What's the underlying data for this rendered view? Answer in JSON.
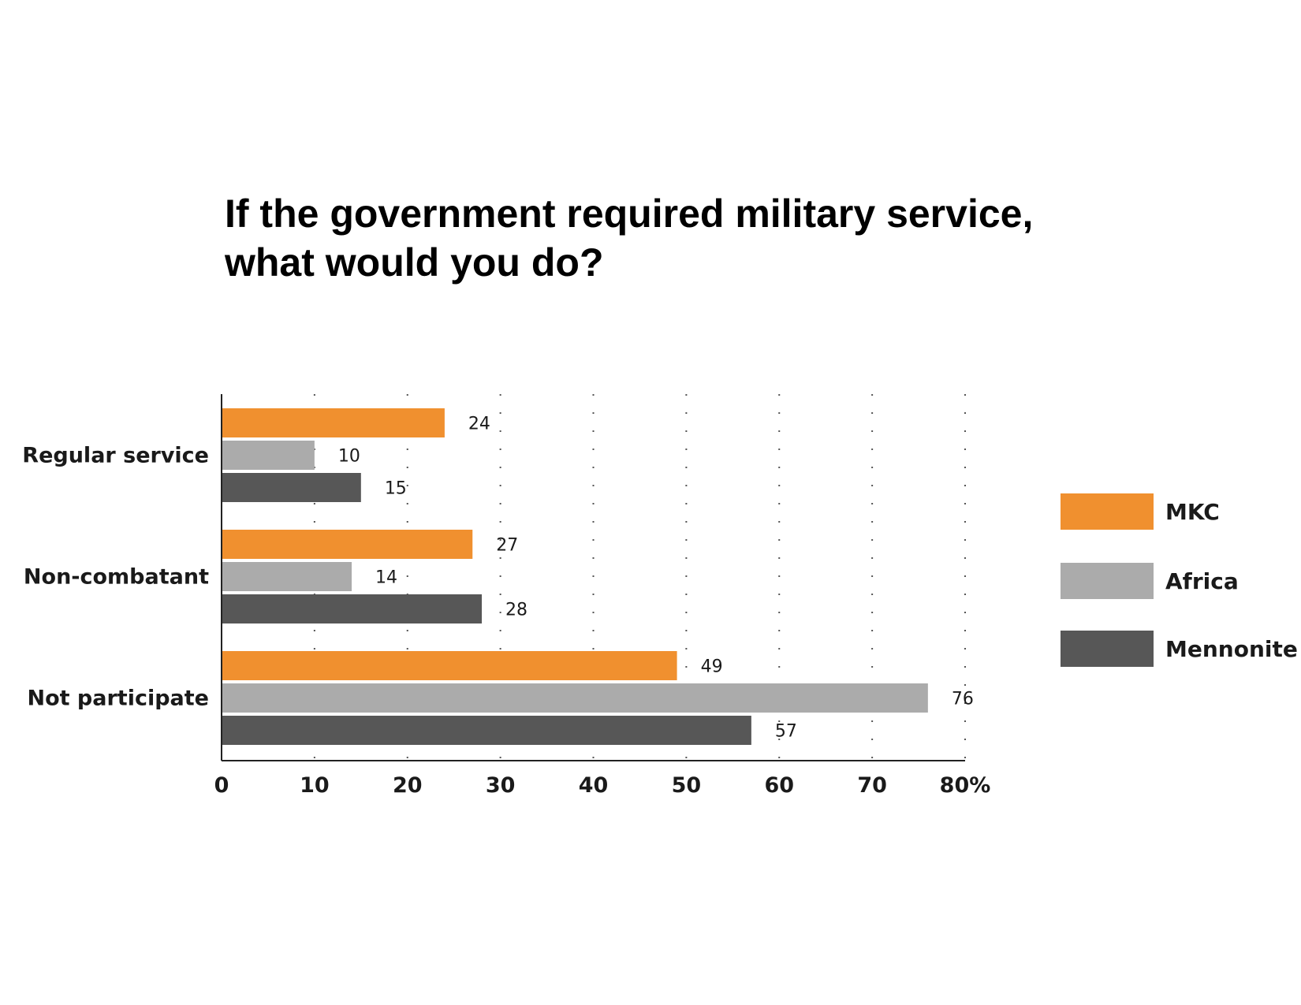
{
  "chart_data": {
    "type": "bar",
    "orientation": "horizontal",
    "title_lines": [
      "If the government required military service,",
      "what would you do?"
    ],
    "categories": [
      "Regular service",
      "Non-combatant",
      "Not participate"
    ],
    "series": [
      {
        "name": "MKC",
        "color": "#F0902F",
        "values": [
          24,
          27,
          49
        ]
      },
      {
        "name": "Africa",
        "color": "#ABABAB",
        "values": [
          10,
          14,
          76
        ]
      },
      {
        "name": "Mennonite",
        "color": "#575757",
        "values": [
          15,
          28,
          57
        ]
      }
    ],
    "x_ticks": [
      "0",
      "10",
      "20",
      "30",
      "40",
      "50",
      "60",
      "70",
      "80%"
    ],
    "xlim": [
      0,
      80
    ],
    "grid": "vertical dotted",
    "legend_position": "right"
  }
}
